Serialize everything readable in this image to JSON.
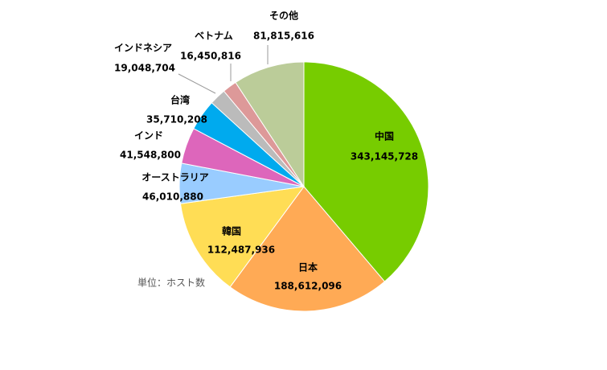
{
  "chart_data": {
    "type": "pie",
    "categories": [
      "中国",
      "日本",
      "韓国",
      "オーストラリア",
      "インド",
      "台湾",
      "インドネシア",
      "ベトナム",
      "その他"
    ],
    "values": [
      343145728,
      188612096,
      112487936,
      46010880,
      41548800,
      35710208,
      19048704,
      16450816,
      81815616
    ],
    "value_labels": [
      "343,145,728",
      "188,612,096",
      "112,487,936",
      "46,010,880",
      "41,548,800",
      "35,710,208",
      "19,048,704",
      "16,450,816",
      "81,815,616"
    ],
    "colors": [
      "#77cc00",
      "#ffaa55",
      "#ffdd55",
      "#99ccff",
      "#dd66bb",
      "#00aaee",
      "#bbbbbb",
      "#dd9999",
      "#bbcc99"
    ],
    "note": "単位：ホスト数"
  }
}
